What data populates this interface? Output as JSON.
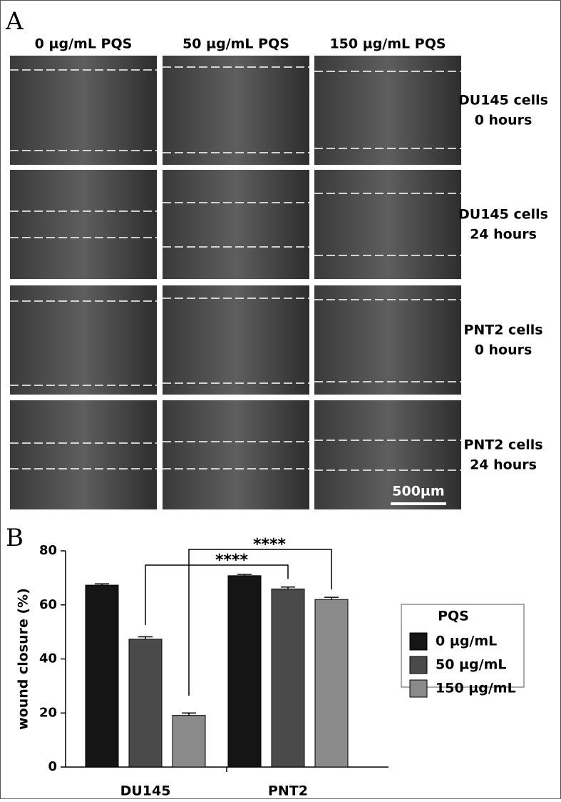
{
  "panel_a": {
    "label": "A",
    "columns": [
      "0 µg/mL PQS",
      "50 µg/mL PQS",
      "150 µg/mL PQS"
    ],
    "rows": [
      [
        "DU145 cells",
        "0 hours"
      ],
      [
        "DU145 cells",
        "24 hours"
      ],
      [
        "PNT2 cells",
        "0 hours"
      ],
      [
        "PNT2 cells",
        "24 hours"
      ]
    ],
    "scale_bar": "500µm"
  },
  "chart_data": {
    "type": "bar",
    "panel_label": "B",
    "y_label": "wound closure (%)",
    "categories": [
      "DU145",
      "PNT2"
    ],
    "series": [
      {
        "name": "0 µg/mL",
        "color": "#151515",
        "values": [
          67.3,
          70.8
        ],
        "errors": [
          0.5,
          0.5
        ]
      },
      {
        "name": "50 µg/mL",
        "color": "#4a4a4a",
        "values": [
          47.3,
          65.9
        ],
        "errors": [
          0.9,
          0.7
        ]
      },
      {
        "name": "150 µg/mL",
        "color": "#8a8a8a",
        "values": [
          19.1,
          62.0
        ],
        "errors": [
          0.9,
          0.8
        ]
      }
    ],
    "ylim": [
      0,
      80
    ],
    "yticks": [
      0,
      20,
      40,
      60,
      80
    ],
    "legend_title": "PQS",
    "annotations": [
      "****",
      "****"
    ]
  }
}
